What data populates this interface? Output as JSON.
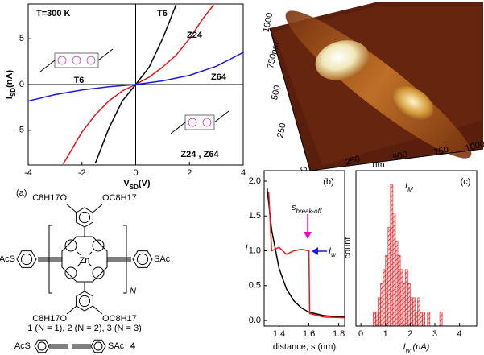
{
  "chart_data": [
    {
      "type": "line",
      "xlabel": {
        "text": "V",
        "sub": "SD",
        "rest": "(V)"
      },
      "ylabel": {
        "text": "I",
        "sub": "SD",
        "rest": "(nA)"
      },
      "annotations": [
        "T=300 K"
      ],
      "insets": [
        "T6",
        "Z24 , Z64"
      ],
      "xlim": [
        -4,
        4
      ],
      "ylim": [
        -8.8,
        8.8
      ],
      "xticks": [
        -4,
        -2,
        0,
        2,
        4
      ],
      "yticks": [
        -5,
        0,
        5
      ],
      "series": [
        {
          "name": "T6",
          "color": "#000000",
          "x": [
            -1.5,
            -1,
            -0.5,
            0,
            0.5,
            1,
            1.5
          ],
          "values": [
            -8.6,
            -4.8,
            -1.8,
            0,
            1.9,
            5,
            8.7
          ]
        },
        {
          "name": "Z24",
          "color": "#e8141b",
          "x": [
            -2.7,
            -2,
            -1.5,
            -1,
            -0.5,
            0,
            0.5,
            1,
            1.5,
            2,
            2.5,
            2.9
          ],
          "values": [
            -8.7,
            -5.2,
            -3.3,
            -1.8,
            -0.7,
            0,
            0.8,
            1.9,
            3.2,
            5,
            7.2,
            8.7
          ]
        },
        {
          "name": "Z64",
          "color": "#1a1ae0",
          "x": [
            -4,
            -3,
            -2,
            -1,
            0,
            1,
            2,
            3,
            4
          ],
          "values": [
            -1.8,
            -1.1,
            -0.6,
            -0.25,
            0,
            0.4,
            1,
            2,
            3.5
          ]
        }
      ]
    },
    {
      "type": "line",
      "panel": "(b)",
      "xlabel": "distance, s (nm)",
      "ylabel": "I",
      "annotations": [
        {
          "text": "s",
          "sub": "break-off"
        },
        {
          "text": "I",
          "sub": "w"
        }
      ],
      "xlim": [
        1.3,
        1.84
      ],
      "ylim": [
        -0.08,
        2.15
      ],
      "xticks": [
        1.4,
        1.6,
        1.8
      ],
      "yticks": [
        {
          "value": 0,
          "label": "0.0"
        },
        0.5,
        {
          "value": 1,
          "label": "1.0"
        },
        1.5,
        {
          "value": 2,
          "label": "2.0"
        }
      ],
      "series": [
        {
          "color": "#000000",
          "x": [
            1.32,
            1.35,
            1.4,
            1.45,
            1.5,
            1.55,
            1.6,
            1.7,
            1.8,
            1.84
          ],
          "values": [
            1.9,
            1.3,
            0.75,
            0.45,
            0.28,
            0.18,
            0.12,
            0.07,
            0.05,
            0.05
          ]
        },
        {
          "color": "#e8141b",
          "x": [
            1.33,
            1.35,
            1.4,
            1.45,
            1.5,
            1.55,
            1.6,
            1.605,
            1.7,
            1.84
          ],
          "values": [
            1.85,
            1.0,
            1.05,
            0.95,
            1.0,
            1.02,
            1.0,
            0.1,
            0.05,
            0.04
          ]
        }
      ]
    },
    {
      "type": "histogram",
      "panel": "(c)",
      "xlabel": {
        "text": "I",
        "sub": "w",
        "rest": " (nA)"
      },
      "ylabel": "count",
      "annotations": [
        {
          "text": "I",
          "sub": "M"
        }
      ],
      "color": "#e8141b",
      "xlim": [
        -0.2,
        4.7
      ],
      "ylim": [
        0,
        11
      ],
      "xticks": [
        0,
        1,
        2,
        3,
        4
      ],
      "bins": [
        0.5,
        0.6,
        0.7,
        0.8,
        0.9,
        1.0,
        1.1,
        1.2,
        1.3,
        1.4,
        1.5,
        1.6,
        1.7,
        1.8,
        1.9,
        2.0,
        2.1,
        2.2,
        2.3,
        2.4,
        2.5,
        2.6,
        2.7,
        2.8,
        2.9,
        3.0,
        3.1,
        3.2,
        3.3,
        3.4,
        3.5
      ],
      "values": [
        1,
        1,
        2,
        3,
        4,
        5,
        7,
        10,
        8,
        6,
        5,
        4,
        3,
        4,
        3,
        2,
        2,
        1,
        2,
        1,
        1,
        0,
        1,
        0,
        0,
        0,
        0,
        1,
        0,
        0
      ]
    }
  ],
  "afm": {
    "y_ticks": [
      "0",
      "250",
      "500",
      "750",
      "1000"
    ],
    "x_ticks": [
      "250",
      "500",
      "750",
      "1000"
    ],
    "unit": "nm"
  },
  "molecule": {
    "panel": "(a)",
    "top_left": "C8H17O",
    "top_right": "OC8H17",
    "bottom_left": "C8H17O",
    "bottom_right": "OC8H17",
    "left_group": "AcS",
    "right_group": "SAc",
    "metal": "Zn",
    "repeat": "N",
    "caption": "1 (N = 1), 2 (N = 2), 3 (N = 3)",
    "compound4": {
      "left": "AcS",
      "right": "SAc",
      "label": "4"
    }
  }
}
